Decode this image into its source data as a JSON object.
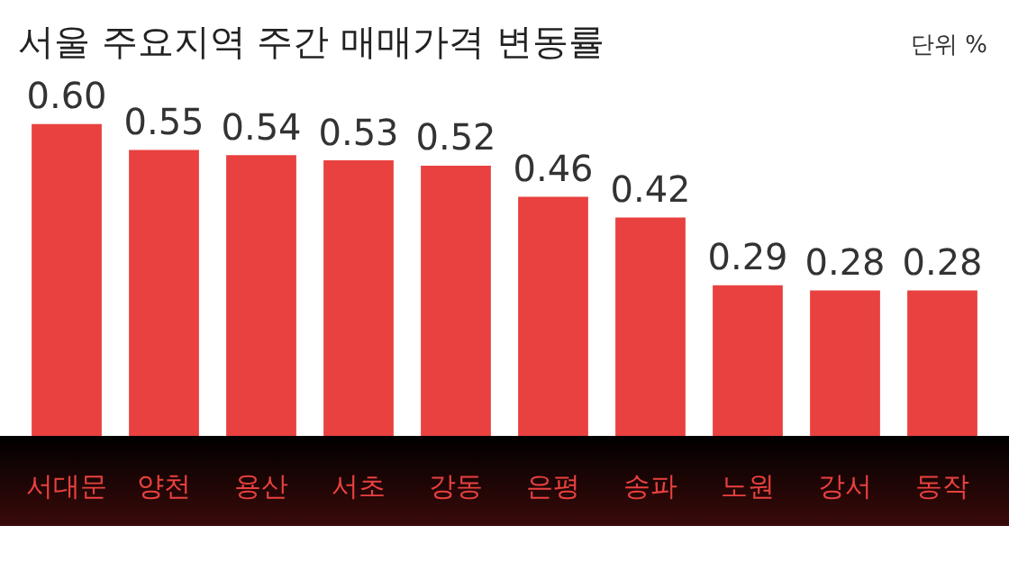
{
  "chart_data": {
    "type": "bar",
    "title": "서울 주요지역 주간 매매가격 변동률",
    "annotations": [
      "단위 %"
    ],
    "categories": [
      "서대문",
      "양천",
      "용산",
      "서초",
      "강동",
      "은평",
      "송파",
      "노원",
      "강서",
      "동작"
    ],
    "values": [
      0.6,
      0.55,
      0.54,
      0.53,
      0.52,
      0.46,
      0.42,
      0.29,
      0.28,
      0.28
    ],
    "value_labels": [
      "0.60",
      "0.55",
      "0.54",
      "0.53",
      "0.52",
      "0.46",
      "0.42",
      "0.29",
      "0.28",
      "0.28"
    ],
    "color": "#e8413f"
  }
}
